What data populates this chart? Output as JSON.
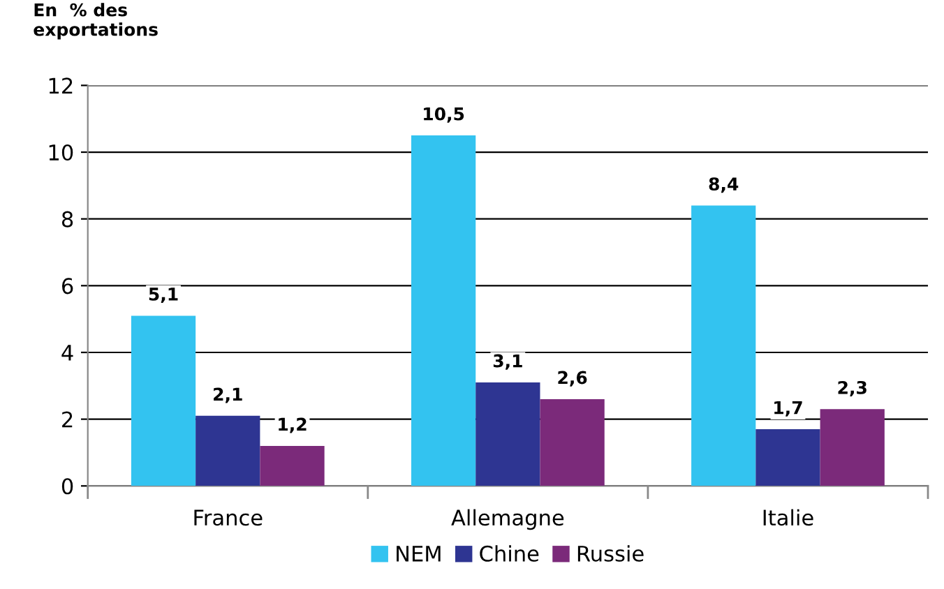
{
  "chart_data": {
    "type": "bar",
    "ylabel": "En  % des\nexportations",
    "categories": [
      "France",
      "Allemagne",
      "Italie"
    ],
    "series": [
      {
        "name": "NEM",
        "color": "#33c3f0",
        "values": [
          5.1,
          10.5,
          8.4
        ],
        "value_labels": [
          "5,1",
          "10,5",
          "8,4"
        ]
      },
      {
        "name": "Chine",
        "color": "#2e3592",
        "values": [
          2.1,
          3.1,
          1.7
        ],
        "value_labels": [
          "2,1",
          "3,1",
          "1,7"
        ]
      },
      {
        "name": "Russie",
        "color": "#7b2a7a",
        "values": [
          1.2,
          2.6,
          2.3
        ],
        "value_labels": [
          "1,2",
          "2,6",
          "2,3"
        ]
      }
    ],
    "ylim": [
      0,
      12
    ],
    "yticks": [
      0,
      2,
      4,
      6,
      8,
      10,
      12
    ],
    "grid": "y",
    "legend": "bottom"
  }
}
